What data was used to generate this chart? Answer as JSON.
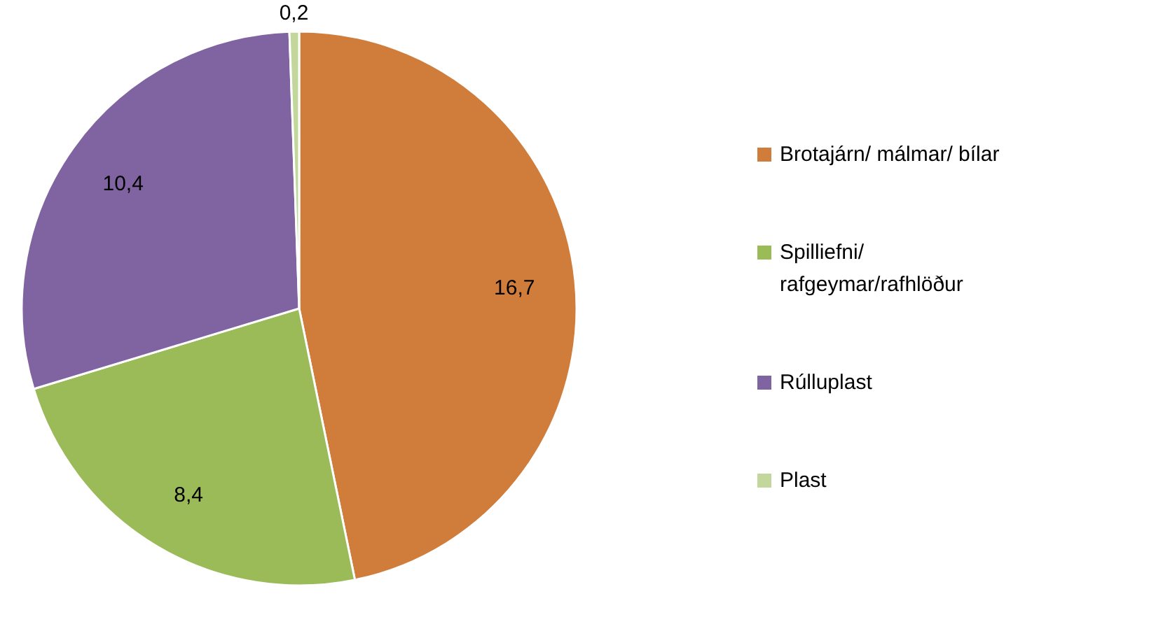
{
  "chart_data": {
    "type": "pie",
    "categories": [
      "Brotajárn/ málmar/ bílar",
      "Spilliefni/ rafgeymar/rafhlöður",
      "Rúlluplast",
      "Plast"
    ],
    "values": [
      16.7,
      8.4,
      10.4,
      0.2
    ],
    "colors": [
      "#d07d3c",
      "#9bbb59",
      "#8064a2",
      "#c3d69b"
    ],
    "value_labels": [
      "16,7",
      "8,4",
      "10,4",
      "0,2"
    ],
    "legend": "right"
  }
}
